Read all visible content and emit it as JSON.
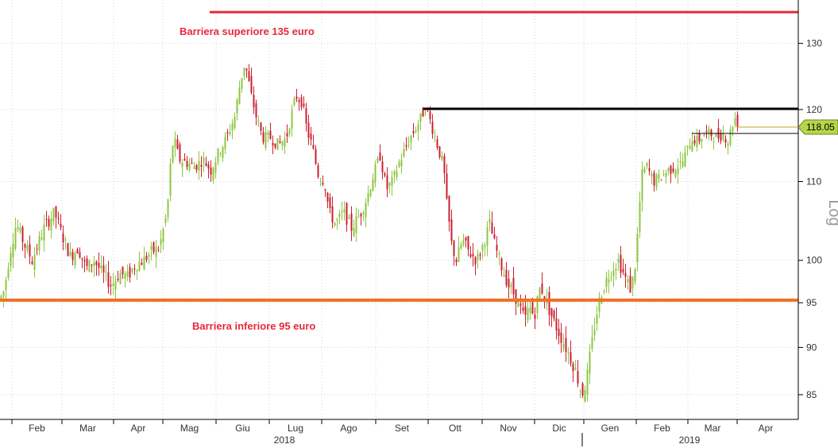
{
  "chart_data": {
    "type": "candlestick",
    "y_scale": "log",
    "y_axis_label": "Log",
    "ylim": [
      82.5,
      137
    ],
    "y_ticks": [
      "85",
      "90",
      "95",
      "100",
      "110",
      "120",
      "130"
    ],
    "x_month_labels": [
      "Feb",
      "Mar",
      "Apr",
      "Mag",
      "Giu",
      "Lug",
      "Ago",
      "Set",
      "Ott",
      "Nov",
      "Dic",
      "Gen",
      "Feb",
      "Mar",
      "Apr"
    ],
    "x_year_labels": [
      "2018",
      "2019"
    ],
    "last_price": "118.05",
    "colors": {
      "up": "#8cc63f",
      "down": "#cc1f2f",
      "upper_barrier": "#e8283c",
      "lower_barrier": "#f07020",
      "resistance": "#000000",
      "last_marker": "#b8d44a"
    },
    "levels": {
      "upper_barrier": 135,
      "lower_barrier": 95.3,
      "resistance": 120.1
    },
    "annotations": {
      "upper": "Barriera superiore 135 euro",
      "lower": "Barriera inferiore 95 euro"
    },
    "price_path": [
      [
        0,
        95.5
      ],
      [
        5,
        96.5
      ],
      [
        12,
        101
      ],
      [
        20,
        104.5
      ],
      [
        30,
        102
      ],
      [
        40,
        100
      ],
      [
        55,
        104
      ],
      [
        68,
        106
      ],
      [
        78,
        103
      ],
      [
        88,
        100.5
      ],
      [
        98,
        101.5
      ],
      [
        108,
        99
      ],
      [
        118,
        100
      ],
      [
        128,
        98.5
      ],
      [
        140,
        97
      ],
      [
        150,
        98.5
      ],
      [
        160,
        98
      ],
      [
        170,
        99.5
      ],
      [
        180,
        100
      ],
      [
        190,
        101
      ],
      [
        200,
        101.5
      ],
      [
        210,
        106
      ],
      [
        214,
        112
      ],
      [
        218,
        116
      ],
      [
        225,
        113
      ],
      [
        235,
        112.5
      ],
      [
        245,
        112
      ],
      [
        255,
        113
      ],
      [
        265,
        111.5
      ],
      [
        275,
        114
      ],
      [
        285,
        116
      ],
      [
        295,
        119
      ],
      [
        302,
        124
      ],
      [
        308,
        127
      ],
      [
        316,
        122
      ],
      [
        322,
        119
      ],
      [
        330,
        116
      ],
      [
        340,
        116
      ],
      [
        350,
        115
      ],
      [
        360,
        116
      ],
      [
        366,
        119
      ],
      [
        372,
        122
      ],
      [
        380,
        121
      ],
      [
        386,
        117
      ],
      [
        392,
        115
      ],
      [
        400,
        111
      ],
      [
        408,
        110
      ],
      [
        414,
        106
      ],
      [
        422,
        104.5
      ],
      [
        432,
        106
      ],
      [
        442,
        104
      ],
      [
        452,
        105.5
      ],
      [
        462,
        108
      ],
      [
        470,
        111
      ],
      [
        478,
        113.5
      ],
      [
        486,
        109
      ],
      [
        494,
        110
      ],
      [
        500,
        112
      ],
      [
        508,
        114
      ],
      [
        516,
        116
      ],
      [
        524,
        117.5
      ],
      [
        530,
        119
      ],
      [
        536,
        120.5
      ],
      [
        542,
        118
      ],
      [
        550,
        115
      ],
      [
        558,
        112
      ],
      [
        562,
        107
      ],
      [
        568,
        102
      ],
      [
        574,
        100
      ],
      [
        582,
        102.5
      ],
      [
        590,
        101
      ],
      [
        600,
        100
      ],
      [
        608,
        102
      ],
      [
        616,
        104.5
      ],
      [
        622,
        102
      ],
      [
        630,
        99.5
      ],
      [
        640,
        97
      ],
      [
        650,
        95.5
      ],
      [
        660,
        93
      ],
      [
        666,
        94.5
      ],
      [
        672,
        93.5
      ],
      [
        680,
        97
      ],
      [
        688,
        95
      ],
      [
        696,
        93
      ],
      [
        704,
        91.5
      ],
      [
        712,
        90
      ],
      [
        720,
        88.5
      ],
      [
        726,
        87
      ],
      [
        732,
        85
      ],
      [
        738,
        86.5
      ],
      [
        744,
        90
      ],
      [
        750,
        93.5
      ],
      [
        756,
        96
      ],
      [
        762,
        97.5
      ],
      [
        770,
        99
      ],
      [
        778,
        100
      ],
      [
        786,
        98
      ],
      [
        794,
        96.5
      ],
      [
        800,
        100
      ],
      [
        804,
        106
      ],
      [
        808,
        111
      ],
      [
        814,
        112
      ],
      [
        822,
        110
      ],
      [
        830,
        110.5
      ],
      [
        840,
        111.5
      ],
      [
        850,
        112
      ],
      [
        858,
        112.5
      ],
      [
        864,
        114
      ],
      [
        870,
        116
      ],
      [
        878,
        115.5
      ],
      [
        886,
        116.5
      ],
      [
        894,
        116.5
      ],
      [
        902,
        116
      ],
      [
        910,
        116.5
      ],
      [
        916,
        115.5
      ],
      [
        922,
        118
      ],
      [
        926,
        119
      ],
      [
        928,
        118.05
      ]
    ]
  }
}
